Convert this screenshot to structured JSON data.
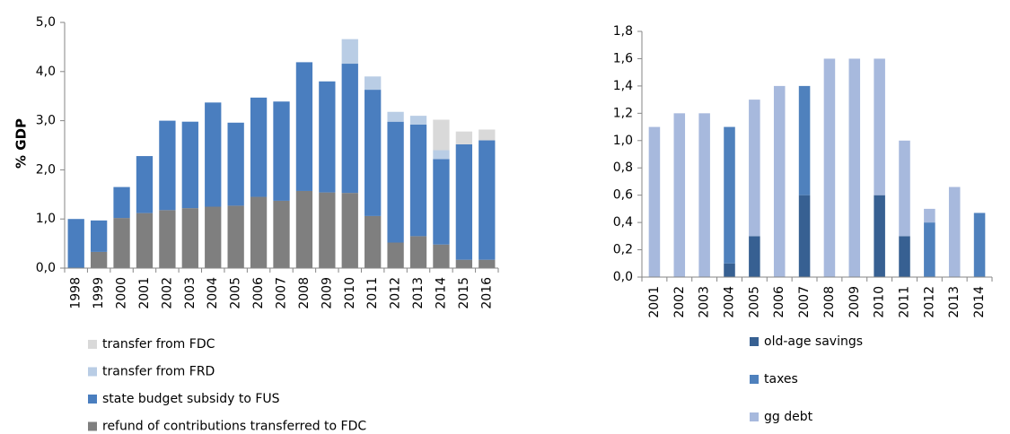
{
  "chart_data": [
    {
      "type": "stacked_bar",
      "y_label": "% GDP",
      "categories": [
        "1998",
        "1999",
        "2000",
        "2001",
        "2002",
        "2003",
        "2004",
        "2005",
        "2006",
        "2007",
        "2008",
        "2009",
        "2010",
        "2011",
        "2012",
        "2013",
        "2014",
        "2015",
        "2016"
      ],
      "series": [
        {
          "name": "refund of contributions transferred to FDC",
          "color": "#7f7f7f",
          "values": [
            0,
            0.33,
            1.02,
            1.12,
            1.18,
            1.22,
            1.25,
            1.27,
            1.45,
            1.37,
            1.57,
            1.54,
            1.53,
            1.06,
            0.52,
            0.65,
            0.48,
            0.17,
            0.17
          ]
        },
        {
          "name": "state budget subsidy to FUS",
          "color": "#4a7ebf",
          "values": [
            1.0,
            0.64,
            0.63,
            1.16,
            1.82,
            1.76,
            2.12,
            1.69,
            2.02,
            2.02,
            2.62,
            2.26,
            2.63,
            2.57,
            2.46,
            2.27,
            1.74,
            2.35,
            2.43
          ]
        },
        {
          "name": "transfer from FRD",
          "color": "#b9cde5",
          "values": [
            0,
            0,
            0,
            0,
            0,
            0,
            0,
            0,
            0,
            0,
            0,
            0,
            0.5,
            0.27,
            0.2,
            0.18,
            0.18,
            0,
            0
          ]
        },
        {
          "name": "transfer from FDC",
          "color": "#d9d9d9",
          "values": [
            0,
            0,
            0,
            0,
            0,
            0,
            0,
            0,
            0,
            0,
            0,
            0,
            0,
            0,
            0,
            0,
            0.62,
            0.26,
            0.22
          ]
        }
      ],
      "ylim": [
        0,
        5
      ],
      "yticks": [
        {
          "value": 0,
          "label": "0,0"
        },
        {
          "value": 1,
          "label": "1,0"
        },
        {
          "value": 2,
          "label": "2,0"
        },
        {
          "value": 3,
          "label": "3,0"
        },
        {
          "value": 4,
          "label": "4,0"
        },
        {
          "value": 5,
          "label": "5,0"
        }
      ]
    },
    {
      "type": "stacked_bar",
      "categories": [
        "2001",
        "2002",
        "2003",
        "2004",
        "2005",
        "2006",
        "2007",
        "2008",
        "2009",
        "2010",
        "2011",
        "2012",
        "2013",
        "2014"
      ],
      "series": [
        {
          "name": "old-age savings",
          "color": "#376092",
          "values": [
            0,
            0,
            0,
            0.1,
            0.3,
            0,
            0.6,
            0,
            0,
            0.6,
            0.3,
            0,
            0,
            0
          ]
        },
        {
          "name": "taxes",
          "color": "#4f81bd",
          "values": [
            0,
            0,
            0,
            1.0,
            0,
            0,
            0.8,
            0,
            0,
            0,
            0,
            0.4,
            0,
            0.47
          ]
        },
        {
          "name": "gg debt",
          "color": "#a7b9dd",
          "values": [
            1.1,
            1.2,
            1.2,
            0,
            1.0,
            1.4,
            0,
            1.6,
            1.6,
            1.0,
            0.7,
            0.1,
            0.66,
            0
          ]
        }
      ],
      "ylim": [
        0,
        1.8
      ],
      "yticks": [
        {
          "value": 0,
          "label": "0,0"
        },
        {
          "value": 0.2,
          "label": "0,2"
        },
        {
          "value": 0.4,
          "label": "0,4"
        },
        {
          "value": 0.6,
          "label": "0,6"
        },
        {
          "value": 0.8,
          "label": "0,8"
        },
        {
          "value": 1.0,
          "label": "1,0"
        },
        {
          "value": 1.2,
          "label": "1,2"
        },
        {
          "value": 1.4,
          "label": "1,4"
        },
        {
          "value": 1.6,
          "label": "1,6"
        },
        {
          "value": 1.8,
          "label": "1,8"
        }
      ]
    }
  ]
}
